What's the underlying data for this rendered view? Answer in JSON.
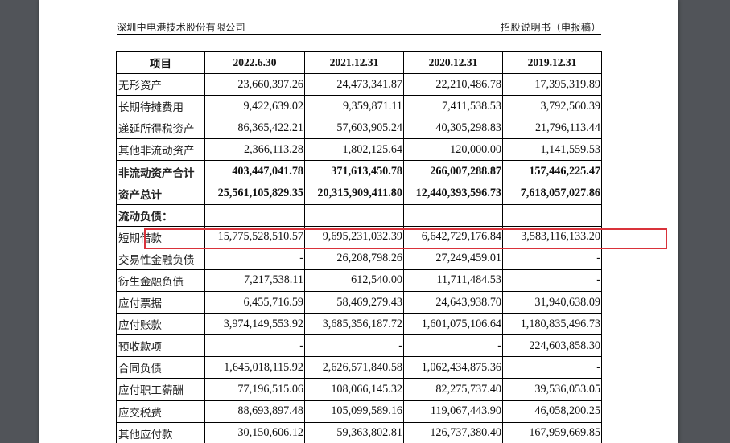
{
  "header": {
    "company": "深圳中电港技术股份有限公司",
    "doc_type": "招股说明书（申报稿）"
  },
  "table": {
    "columns": [
      "项目",
      "2022.6.30",
      "2021.12.31",
      "2020.12.31",
      "2019.12.31"
    ],
    "rows": [
      {
        "label": "无形资产",
        "values": [
          "23,660,397.26",
          "24,473,341.87",
          "22,210,486.78",
          "17,395,319.89"
        ],
        "bold": false
      },
      {
        "label": "长期待摊费用",
        "values": [
          "9,422,639.02",
          "9,359,871.11",
          "7,411,538.53",
          "3,792,560.39"
        ],
        "bold": false
      },
      {
        "label": "递延所得税资产",
        "values": [
          "86,365,422.21",
          "57,603,905.24",
          "40,305,298.83",
          "21,796,113.44"
        ],
        "bold": false
      },
      {
        "label": "其他非流动资产",
        "values": [
          "2,366,113.28",
          "1,802,125.64",
          "120,000.00",
          "1,141,559.53"
        ],
        "bold": false
      },
      {
        "label": "非流动资产合计",
        "values": [
          "403,447,041.78",
          "371,613,450.78",
          "266,007,288.87",
          "157,446,225.47"
        ],
        "bold": true
      },
      {
        "label": "资产总计",
        "values": [
          "25,561,105,829.35",
          "20,315,909,411.80",
          "12,440,393,596.73",
          "7,618,057,027.86"
        ],
        "bold": true
      },
      {
        "label": "流动负债：",
        "values": [
          "",
          "",
          "",
          ""
        ],
        "bold": true
      },
      {
        "label": "短期借款",
        "values": [
          "15,775,528,510.57",
          "9,695,231,032.39",
          "6,642,729,176.84",
          "3,583,116,133.20"
        ],
        "bold": false,
        "highlighted": true
      },
      {
        "label": "交易性金融负债",
        "values": [
          "-",
          "26,208,798.26",
          "27,249,459.01",
          "-"
        ],
        "bold": false
      },
      {
        "label": "衍生金融负债",
        "values": [
          "7,217,538.11",
          "612,540.00",
          "11,711,484.53",
          "-"
        ],
        "bold": false
      },
      {
        "label": "应付票据",
        "values": [
          "6,455,716.59",
          "58,469,279.43",
          "24,643,938.70",
          "31,940,638.09"
        ],
        "bold": false
      },
      {
        "label": "应付账款",
        "values": [
          "3,974,149,553.92",
          "3,685,356,187.72",
          "1,601,075,106.64",
          "1,180,835,496.73"
        ],
        "bold": false
      },
      {
        "label": "预收款项",
        "values": [
          "-",
          "-",
          "-",
          "224,603,858.30"
        ],
        "bold": false
      },
      {
        "label": "合同负债",
        "values": [
          "1,645,018,115.92",
          "2,626,571,840.58",
          "1,062,434,875.36",
          "-"
        ],
        "bold": false
      },
      {
        "label": "应付职工薪酬",
        "values": [
          "77,196,515.06",
          "108,066,145.32",
          "82,275,737.40",
          "39,536,053.05"
        ],
        "bold": false
      },
      {
        "label": "应交税费",
        "values": [
          "88,693,897.48",
          "105,099,589.16",
          "119,067,443.90",
          "46,058,200.25"
        ],
        "bold": false
      },
      {
        "label": "其他应付款",
        "values": [
          "30,150,606.12",
          "59,363,802.81",
          "126,737,380.40",
          "167,959,669.85"
        ],
        "bold": false
      }
    ]
  },
  "colors": {
    "viewer_background": "#515459",
    "page_background": "#ffffff",
    "highlight_border": "#d9323a"
  }
}
